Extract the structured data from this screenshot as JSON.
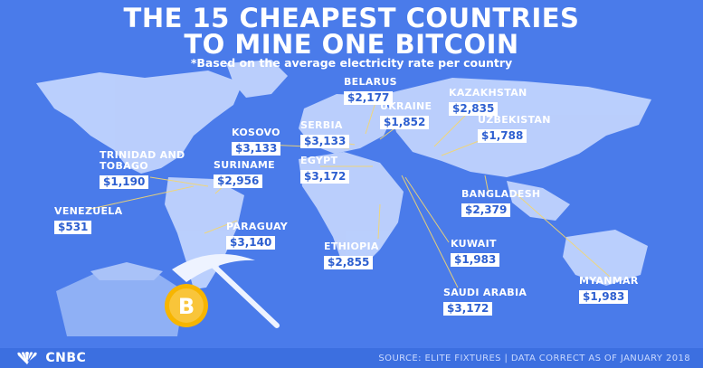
{
  "header": {
    "title": "THE 15 CHEAPEST COUNTRIES\nTO MINE ONE BITCOIN",
    "subtitle": "*Based on the average electricity rate per country"
  },
  "countries": [
    {
      "name": "BELARUS",
      "price": "$2,177"
    },
    {
      "name": "KAZAKHSTAN",
      "price": "$2,835"
    },
    {
      "name": "UKRAINE",
      "price": "$1,852"
    },
    {
      "name": "UZBEKISTAN",
      "price": "$1,788"
    },
    {
      "name": "SERBIA",
      "price": "$3,133"
    },
    {
      "name": "KOSOVO",
      "price": "$3,133"
    },
    {
      "name": "TRINIDAD AND\nTOBAGO",
      "price": "$1,190"
    },
    {
      "name": "EGYPT",
      "price": "$3,172"
    },
    {
      "name": "SURINAME",
      "price": "$2,956"
    },
    {
      "name": "BANGLADESH",
      "price": "$2,379"
    },
    {
      "name": "VENEZUELA",
      "price": "$531"
    },
    {
      "name": "PARAGUAY",
      "price": "$3,140"
    },
    {
      "name": "KUWAIT",
      "price": "$1,983"
    },
    {
      "name": "ETHIOPIA",
      "price": "$2,855"
    },
    {
      "name": "MYANMAR",
      "price": "$1,983"
    },
    {
      "name": "SAUDI ARABIA",
      "price": "$3,172"
    }
  ],
  "footer": {
    "brand": "CNBC",
    "source": "SOURCE: ELITE FIXTURES | DATA CORRECT AS OF JANUARY 2018"
  },
  "colors": {
    "background": "#4a7bea",
    "land": "#c7d8ff",
    "leader_line": "#f5d76e",
    "price_text": "#2d5fd0",
    "bitcoin": "#f7b500"
  },
  "icons": [
    "pickaxe-icon",
    "bitcoin-icon",
    "cnbc-peacock-icon"
  ]
}
